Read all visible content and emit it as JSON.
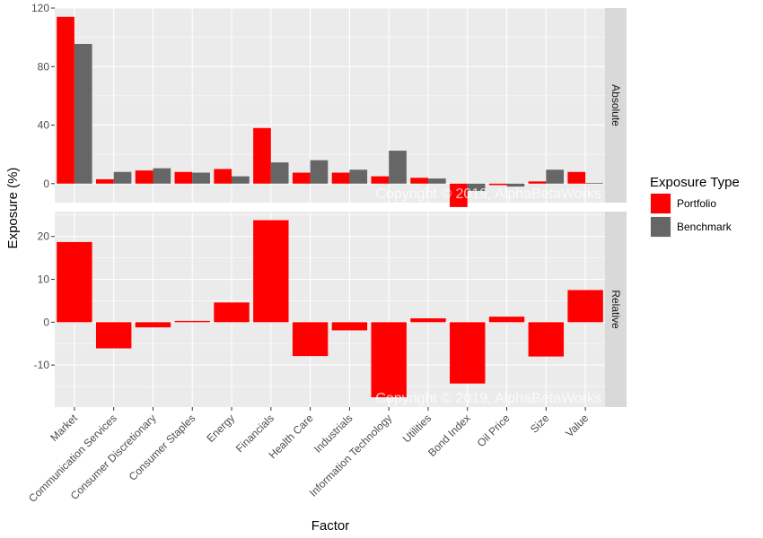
{
  "chart_data": {
    "type": "bar",
    "xlabel": "Factor",
    "ylabel": "Exposure (%)",
    "categories": [
      "Market",
      "Communication Services",
      "Consumer Discretionary",
      "Consumer Staples",
      "Energy",
      "Financials",
      "Health Care",
      "Industrials",
      "Information Technology",
      "Utilities",
      "Bond Index",
      "Oil Price",
      "Size",
      "Value"
    ],
    "legend": {
      "title": "Exposure Type",
      "position": "right",
      "entries": [
        {
          "name": "Portfolio",
          "color": "#ff0000"
        },
        {
          "name": "Benchmark",
          "color": "#666666"
        }
      ]
    },
    "watermark": "Copyright © 2019, AlphaBetaWorks",
    "panels": [
      {
        "strip": "Absolute",
        "ylim": [
          -13,
          120
        ],
        "ticks": [
          0,
          40,
          80,
          120
        ],
        "series": [
          {
            "name": "Portfolio",
            "values": [
              114,
              3,
              9,
              8,
              10,
              38,
              7.5,
              7.5,
              5,
              4,
              -16,
              -1,
              1.5,
              8
            ]
          },
          {
            "name": "Benchmark",
            "values": [
              95.5,
              8,
              10.5,
              7.5,
              5,
              14.5,
              16,
              9.5,
              22.5,
              3.5,
              -5,
              -2,
              9.5,
              0.5
            ]
          }
        ]
      },
      {
        "strip": "Relative",
        "ylim": [
          -19.8,
          25.8
        ],
        "ticks": [
          -10,
          0,
          10,
          20
        ],
        "series": [
          {
            "name": "Portfolio",
            "values": [
              18.7,
              -6.1,
              -1.2,
              0.3,
              4.6,
              23.8,
              -7.9,
              -1.9,
              -17.5,
              0.9,
              -14.3,
              1.3,
              -8.0,
              7.5
            ]
          }
        ]
      }
    ]
  }
}
